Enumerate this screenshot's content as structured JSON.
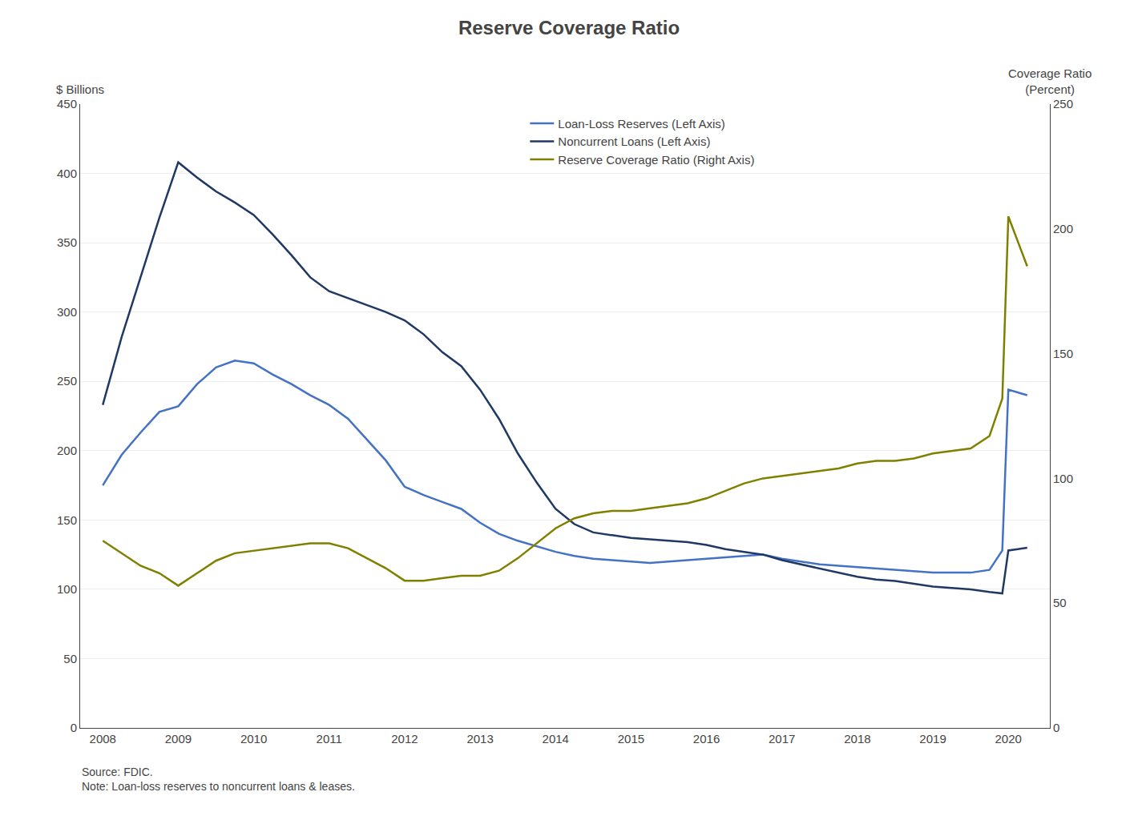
{
  "chart_data": {
    "type": "line",
    "title": "Reserve Coverage Ratio",
    "ylabel": "$ Billions",
    "y2label": "Coverage Ratio\n(Percent)",
    "annotations": [
      "Source: FDIC.\nNote: Loan-loss reserves to noncurrent loans & leases."
    ],
    "x": [
      2008.0,
      2008.25,
      2008.5,
      2008.75,
      2009.0,
      2009.25,
      2009.5,
      2009.75,
      2010.0,
      2010.25,
      2010.5,
      2010.75,
      2011.0,
      2011.25,
      2011.5,
      2011.75,
      2012.0,
      2012.25,
      2012.5,
      2012.75,
      2013.0,
      2013.25,
      2013.5,
      2013.75,
      2014.0,
      2014.25,
      2014.5,
      2014.75,
      2015.0,
      2015.25,
      2015.5,
      2015.75,
      2016.0,
      2016.25,
      2016.5,
      2016.75,
      2017.0,
      2017.25,
      2017.5,
      2017.75,
      2018.0,
      2018.25,
      2018.5,
      2018.75,
      2019.0,
      2019.25,
      2019.5,
      2019.75,
      2019.92,
      2020.0,
      2020.25
    ],
    "xlim": [
      2007.7,
      2020.55
    ],
    "xticks": [
      2008,
      2009,
      2010,
      2011,
      2012,
      2013,
      2014,
      2015,
      2016,
      2017,
      2018,
      2019,
      2020
    ],
    "ylim": [
      0,
      450
    ],
    "yticks": [
      0,
      50,
      100,
      150,
      200,
      250,
      300,
      350,
      400,
      450
    ],
    "y2lim": [
      0,
      250
    ],
    "y2ticks": [
      0,
      50,
      100,
      150,
      200,
      250
    ],
    "grid": "y",
    "legend": "upper center",
    "series": [
      {
        "name": "Loan-Loss Reserves (Left Axis)",
        "color": "#4472c4",
        "values": [
          175,
          197,
          213,
          228,
          232,
          248,
          260,
          265,
          263,
          255,
          248,
          240,
          233,
          223,
          208,
          193,
          174,
          168,
          163,
          158,
          148,
          140,
          135,
          131,
          127,
          124,
          122,
          121,
          120,
          119,
          120,
          121,
          122,
          123,
          124,
          125,
          122,
          120,
          118,
          117,
          116,
          115,
          114,
          113,
          112,
          112,
          112,
          114,
          128,
          244,
          240
        ]
      },
      {
        "name": "Noncurrent Loans (Left Axis)",
        "color": "#1f3864",
        "values": [
          233,
          282,
          325,
          368,
          408,
          397,
          387,
          379,
          370,
          356,
          341,
          325,
          315,
          310,
          305,
          300,
          294,
          284,
          271,
          261,
          244,
          223,
          198,
          177,
          158,
          147,
          141,
          139,
          137,
          136,
          135,
          134,
          132,
          129,
          127,
          125,
          121,
          118,
          115,
          112,
          109,
          107,
          106,
          104,
          102,
          101,
          100,
          98,
          97,
          128,
          130
        ]
      },
      {
        "name": "Reserve Coverage Ratio (Right Axis)",
        "color": "#808000",
        "axis": "y2",
        "values": [
          75,
          70,
          65,
          62,
          57,
          62,
          67,
          70,
          71,
          72,
          73,
          74,
          74,
          72,
          68,
          64,
          59,
          59,
          60,
          61,
          61,
          63,
          68,
          74,
          80,
          84,
          86,
          87,
          87,
          88,
          89,
          90,
          92,
          95,
          98,
          100,
          101,
          102,
          103,
          104,
          106,
          107,
          107,
          108,
          110,
          111,
          112,
          117,
          132,
          205,
          185
        ]
      }
    ]
  }
}
